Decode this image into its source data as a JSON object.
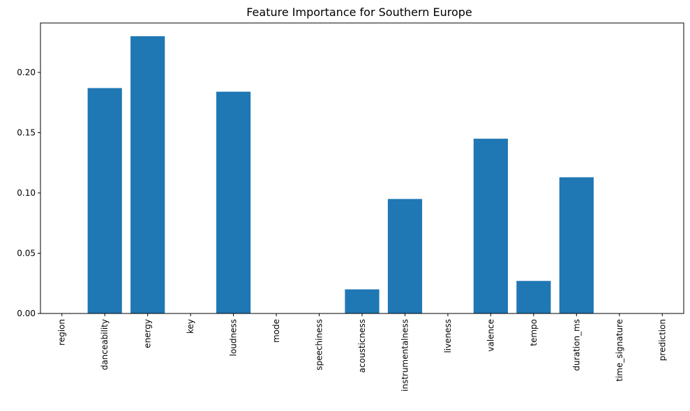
{
  "chart_data": {
    "type": "bar",
    "title": "Feature Importance for Southern Europe",
    "xlabel": "",
    "ylabel": "",
    "categories": [
      "region",
      "danceability",
      "energy",
      "key",
      "loudness",
      "mode",
      "speechiness",
      "acousticness",
      "instrumentalness",
      "liveness",
      "valence",
      "tempo",
      "duration_ms",
      "time_signature",
      "prediction"
    ],
    "values": [
      0,
      0.187,
      0.23,
      0,
      0.184,
      0,
      0,
      0.02,
      0.095,
      0,
      0.145,
      0.027,
      0.113,
      0,
      0
    ],
    "ylim": [
      0,
      0.241
    ],
    "yticks": [
      0.0,
      0.05,
      0.1,
      0.15,
      0.2
    ],
    "ytick_labels": [
      "0.00",
      "0.05",
      "0.10",
      "0.15",
      "0.20"
    ],
    "bar_color": "#1f77b4",
    "grid": false,
    "x_tick_rotation": 90
  }
}
